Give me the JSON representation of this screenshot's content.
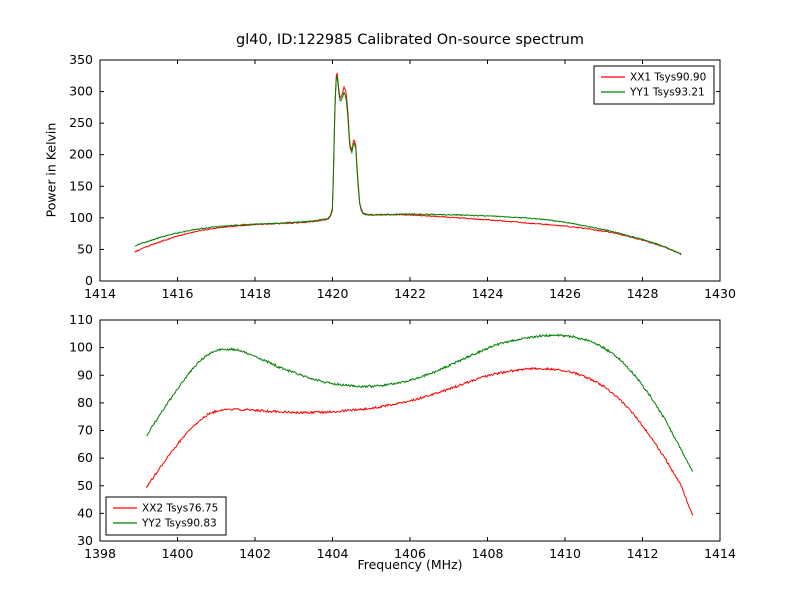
{
  "figure": {
    "background": "#ffffff",
    "axis_color": "#000000"
  },
  "chart_data": [
    {
      "type": "line",
      "title": "gl40, ID:122985 Calibrated On-source spectrum",
      "xlabel": "",
      "ylabel": "Power in Kelvin",
      "xlim": [
        1414,
        1430
      ],
      "ylim": [
        0,
        350
      ],
      "xticks": [
        1414,
        1416,
        1418,
        1420,
        1422,
        1424,
        1426,
        1428,
        1430
      ],
      "yticks": [
        0,
        50,
        100,
        150,
        200,
        250,
        300,
        350
      ],
      "grid": false,
      "legend": {
        "position": "top-right"
      },
      "series": [
        {
          "name": "XX1 Tsys90.90",
          "color": "#ff0000",
          "noise": 0.8,
          "x": [
            1414.9,
            1415.0,
            1415.2,
            1415.4,
            1415.6,
            1415.8,
            1416.0,
            1416.3,
            1416.6,
            1417.0,
            1417.4,
            1417.8,
            1418.2,
            1418.6,
            1419.0,
            1419.3,
            1419.6,
            1419.8,
            1419.9,
            1419.95,
            1420.0,
            1420.03,
            1420.06,
            1420.09,
            1420.12,
            1420.16,
            1420.2,
            1420.25,
            1420.3,
            1420.35,
            1420.4,
            1420.45,
            1420.5,
            1420.55,
            1420.6,
            1420.65,
            1420.7,
            1420.75,
            1420.8,
            1420.9,
            1421.0,
            1421.5,
            1422.0,
            1422.5,
            1423.0,
            1423.5,
            1424.0,
            1424.5,
            1425.0,
            1425.5,
            1426.0,
            1426.3,
            1426.6,
            1427.0,
            1427.3,
            1427.6,
            1428.0,
            1428.3,
            1428.6,
            1428.8,
            1429.0
          ],
          "y": [
            46,
            49,
            54,
            59,
            63,
            67,
            71,
            76,
            80,
            84,
            86.5,
            88.5,
            90,
            91,
            92,
            93,
            95,
            97,
            99,
            102,
            112,
            180,
            265,
            322,
            330,
            305,
            288,
            296,
            308,
            300,
            265,
            215,
            208,
            225,
            215,
            165,
            125,
            112,
            107,
            105,
            104.5,
            105,
            104.5,
            103,
            101,
            99,
            97,
            94.5,
            92,
            89.5,
            87,
            85,
            82.5,
            79,
            75.5,
            71,
            65,
            59,
            53,
            48,
            43
          ]
        },
        {
          "name": "YY1 Tsys93.21",
          "color": "#008000",
          "noise": 0.8,
          "x": [
            1414.9,
            1415.0,
            1415.2,
            1415.4,
            1415.6,
            1415.8,
            1416.0,
            1416.3,
            1416.6,
            1417.0,
            1417.4,
            1417.8,
            1418.2,
            1418.6,
            1419.0,
            1419.3,
            1419.6,
            1419.8,
            1419.9,
            1419.95,
            1420.0,
            1420.03,
            1420.06,
            1420.09,
            1420.12,
            1420.16,
            1420.2,
            1420.25,
            1420.3,
            1420.35,
            1420.4,
            1420.45,
            1420.5,
            1420.55,
            1420.6,
            1420.65,
            1420.7,
            1420.75,
            1420.8,
            1420.9,
            1421.0,
            1421.5,
            1422.0,
            1422.5,
            1423.0,
            1423.5,
            1424.0,
            1424.5,
            1425.0,
            1425.5,
            1426.0,
            1426.3,
            1426.6,
            1427.0,
            1427.3,
            1427.6,
            1428.0,
            1428.3,
            1428.6,
            1428.8,
            1429.0
          ],
          "y": [
            55,
            58,
            62,
            66,
            70,
            73,
            76,
            80,
            83,
            86,
            88,
            89.5,
            90.5,
            91.5,
            93,
            94,
            96,
            98,
            100,
            104,
            116,
            188,
            272,
            318,
            326,
            300,
            284,
            290,
            298,
            291,
            256,
            210,
            204,
            220,
            210,
            160,
            122,
            110,
            106,
            105,
            105,
            105.5,
            106,
            105.5,
            105,
            104,
            103,
            101.5,
            100,
            97,
            93,
            90,
            86,
            81.5,
            77,
            72,
            66,
            60,
            53.5,
            48,
            42
          ]
        }
      ]
    },
    {
      "type": "line",
      "title": "",
      "xlabel": "Frequency (MHz)",
      "ylabel": "",
      "xlim": [
        1398,
        1414
      ],
      "ylim": [
        30,
        110
      ],
      "xticks": [
        1398,
        1400,
        1402,
        1404,
        1406,
        1408,
        1410,
        1412,
        1414
      ],
      "yticks": [
        30,
        40,
        50,
        60,
        70,
        80,
        90,
        100,
        110
      ],
      "grid": false,
      "legend": {
        "position": "bottom-left"
      },
      "series": [
        {
          "name": "XX2 Tsys76.75",
          "color": "#ff0000",
          "noise": 0.4,
          "x": [
            1399.2,
            1399.4,
            1399.6,
            1399.8,
            1400.0,
            1400.2,
            1400.4,
            1400.6,
            1400.8,
            1401.0,
            1401.2,
            1401.4,
            1401.6,
            1401.8,
            1402.0,
            1402.3,
            1402.6,
            1403.0,
            1403.4,
            1403.8,
            1404.2,
            1404.6,
            1405.0,
            1405.4,
            1405.8,
            1406.2,
            1406.6,
            1407.0,
            1407.4,
            1407.8,
            1408.2,
            1408.6,
            1409.0,
            1409.4,
            1409.8,
            1410.2,
            1410.6,
            1411.0,
            1411.4,
            1411.8,
            1412.2,
            1412.6,
            1413.0,
            1413.3
          ],
          "y": [
            49.5,
            53.5,
            57.5,
            61.5,
            65,
            68.5,
            71.5,
            74,
            76,
            77,
            77.5,
            77.6,
            77.5,
            77.5,
            77.4,
            77,
            76.8,
            76.5,
            76.5,
            76.6,
            77,
            77.5,
            78,
            79,
            80,
            81.5,
            83,
            85,
            87,
            89,
            90.5,
            91.5,
            92.3,
            92.5,
            92,
            91,
            89,
            86,
            81.5,
            75.5,
            68,
            59.5,
            50,
            39
          ]
        },
        {
          "name": "YY2 Tsys90.83",
          "color": "#008000",
          "noise": 0.4,
          "x": [
            1399.2,
            1399.4,
            1399.6,
            1399.8,
            1400.0,
            1400.2,
            1400.4,
            1400.6,
            1400.8,
            1401.0,
            1401.2,
            1401.4,
            1401.6,
            1401.8,
            1402.0,
            1402.3,
            1402.6,
            1403.0,
            1403.4,
            1403.8,
            1404.2,
            1404.6,
            1405.0,
            1405.4,
            1405.8,
            1406.2,
            1406.6,
            1407.0,
            1407.4,
            1407.8,
            1408.2,
            1408.6,
            1409.0,
            1409.4,
            1409.8,
            1410.2,
            1410.6,
            1411.0,
            1411.4,
            1411.8,
            1412.2,
            1412.6,
            1413.0,
            1413.3
          ],
          "y": [
            68,
            72.5,
            77,
            81,
            85,
            89,
            92.5,
            95.5,
            97.5,
            99,
            99.5,
            99.5,
            99,
            98,
            97,
            95,
            93,
            91,
            89,
            87.5,
            86.5,
            86,
            86,
            86.5,
            87.5,
            89,
            91,
            93.5,
            96,
            98.5,
            101,
            102.5,
            103.5,
            104.3,
            104.5,
            104,
            102.5,
            100,
            96,
            90,
            82.5,
            73.5,
            63,
            55
          ]
        }
      ]
    }
  ]
}
